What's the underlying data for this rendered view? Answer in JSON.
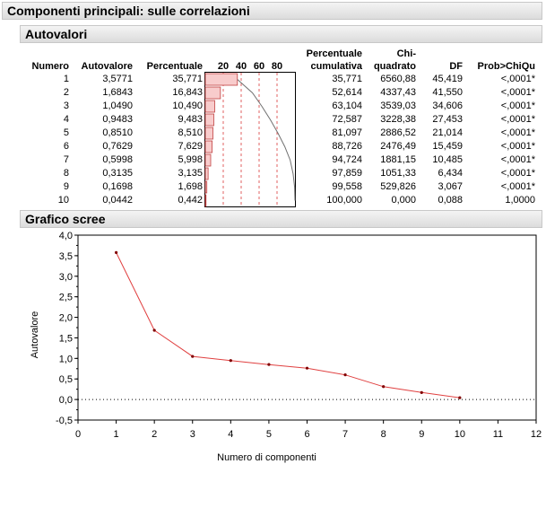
{
  "title": "Componenti principali: sulle correlazioni",
  "eigen_section": {
    "title": "Autovalori",
    "columns": {
      "numero": "Numero",
      "autovalore": "Autovalore",
      "percentuale": "Percentuale",
      "bar_ticks": [
        "20",
        "40",
        "60",
        "80"
      ],
      "perc_cum_1": "Percentuale",
      "perc_cum_2": "cumulativa",
      "chi_1": "Chi-",
      "chi_2": "quadrato",
      "df": "DF",
      "prob": "Prob>ChiQu"
    },
    "rows": [
      {
        "n": "1",
        "eig": "3,5771",
        "pct": "35,771",
        "cum": "35,771",
        "chi": "6560,88",
        "df": "45,419",
        "p": "<,0001*",
        "pct_v": 35.771,
        "cum_v": 35.771
      },
      {
        "n": "2",
        "eig": "1,6843",
        "pct": "16,843",
        "cum": "52,614",
        "chi": "4337,43",
        "df": "41,550",
        "p": "<,0001*",
        "pct_v": 16.843,
        "cum_v": 52.614
      },
      {
        "n": "3",
        "eig": "1,0490",
        "pct": "10,490",
        "cum": "63,104",
        "chi": "3539,03",
        "df": "34,606",
        "p": "<,0001*",
        "pct_v": 10.49,
        "cum_v": 63.104
      },
      {
        "n": "4",
        "eig": "0,9483",
        "pct": "9,483",
        "cum": "72,587",
        "chi": "3228,38",
        "df": "27,453",
        "p": "<,0001*",
        "pct_v": 9.483,
        "cum_v": 72.587
      },
      {
        "n": "5",
        "eig": "0,8510",
        "pct": "8,510",
        "cum": "81,097",
        "chi": "2886,52",
        "df": "21,014",
        "p": "<,0001*",
        "pct_v": 8.51,
        "cum_v": 81.097
      },
      {
        "n": "6",
        "eig": "0,7629",
        "pct": "7,629",
        "cum": "88,726",
        "chi": "2476,49",
        "df": "15,459",
        "p": "<,0001*",
        "pct_v": 7.629,
        "cum_v": 88.726
      },
      {
        "n": "7",
        "eig": "0,5998",
        "pct": "5,998",
        "cum": "94,724",
        "chi": "1881,15",
        "df": "10,485",
        "p": "<,0001*",
        "pct_v": 5.998,
        "cum_v": 94.724
      },
      {
        "n": "8",
        "eig": "0,3135",
        "pct": "3,135",
        "cum": "97,859",
        "chi": "1051,33",
        "df": "6,434",
        "p": "<,0001*",
        "pct_v": 3.135,
        "cum_v": 97.859
      },
      {
        "n": "9",
        "eig": "0,1698",
        "pct": "1,698",
        "cum": "99,558",
        "chi": "529,826",
        "df": "3,067",
        "p": "<,0001*",
        "pct_v": 1.698,
        "cum_v": 99.558
      },
      {
        "n": "10",
        "eig": "0,0442",
        "pct": "0,442",
        "cum": "100,000",
        "chi": "0,000",
        "df": "0,088",
        "p": "1,0000",
        "pct_v": 0.442,
        "cum_v": 100.0
      }
    ]
  },
  "scree_section": {
    "title": "Grafico scree"
  },
  "colors": {
    "bar_fill": "#f8cccc",
    "bar_stroke": "#c04040",
    "line": "#e04040",
    "cum_curve": "#707070",
    "ref_line": "#e06060"
  },
  "chart_data": {
    "type": "line",
    "x": [
      1,
      2,
      3,
      4,
      5,
      6,
      7,
      8,
      9,
      10
    ],
    "series": [
      {
        "values": [
          3.5771,
          1.6843,
          1.049,
          0.9483,
          0.851,
          0.7629,
          0.5998,
          0.3135,
          0.1698,
          0.0442
        ]
      }
    ],
    "xlabel": "Numero di componenti",
    "ylabel": "Autovalore",
    "xlim": [
      0,
      12
    ],
    "ylim": [
      -0.5,
      4.0
    ],
    "xticks": [
      "0",
      "1",
      "2",
      "3",
      "4",
      "5",
      "6",
      "7",
      "8",
      "9",
      "10",
      "11",
      "12"
    ],
    "yticks": [
      "-0,5",
      "0,0",
      "0,5",
      "1,0",
      "1,5",
      "2,0",
      "2,5",
      "3,0",
      "3,5",
      "4,0"
    ],
    "reference_line_y": 0,
    "grid": false
  }
}
